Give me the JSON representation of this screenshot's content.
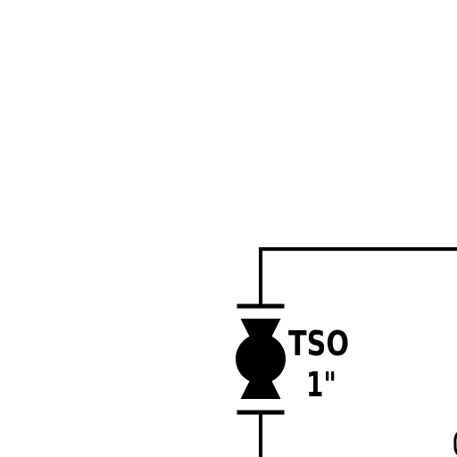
{
  "diagram": {
    "background_color": "#ffffff",
    "line_color": "#000000",
    "valve": {
      "icon": "ball-valve-icon",
      "tag": "TSO",
      "size": "1\""
    }
  }
}
